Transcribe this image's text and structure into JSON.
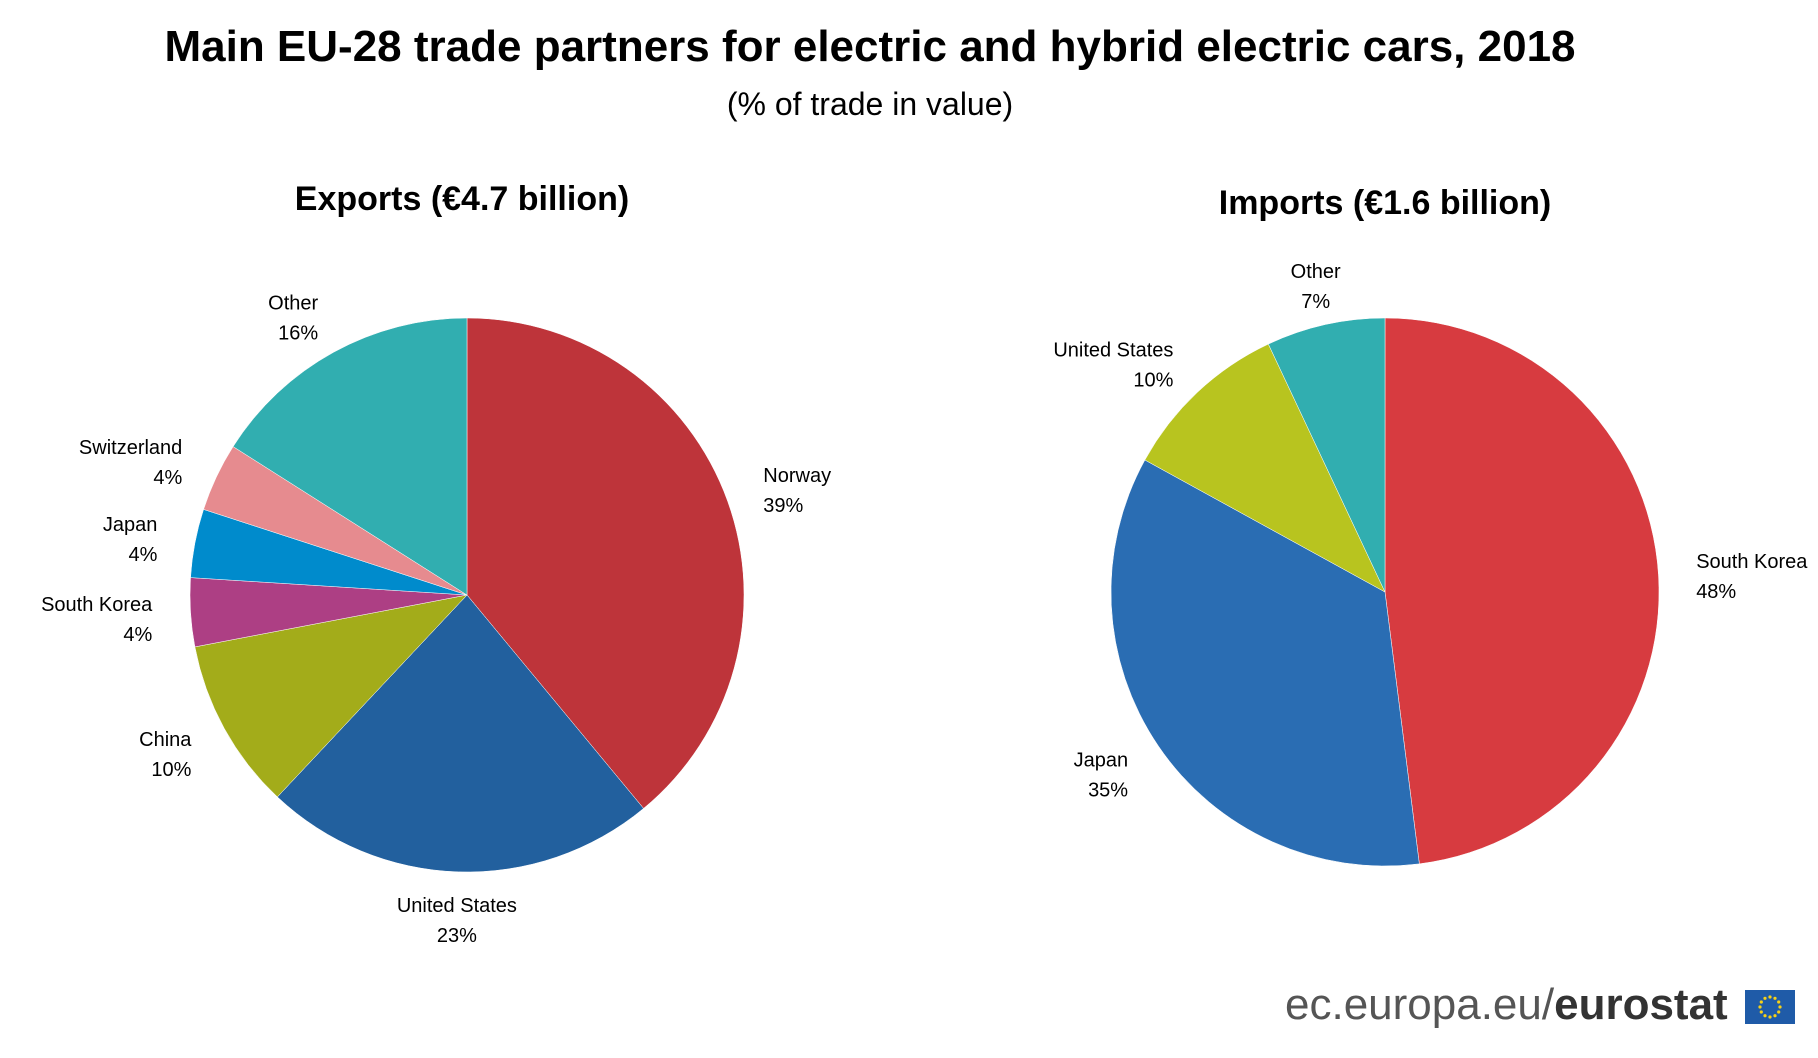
{
  "title": "Main EU-28 trade partners for electric and hybrid electric cars, 2018",
  "subtitle": "(% of trade in value)",
  "footer": {
    "domain": "ec.europa.eu/",
    "brand": "eurostat"
  },
  "chart_data": [
    {
      "type": "pie",
      "title": "Exports (€4.7 billion)",
      "slices": [
        {
          "label": "Norway",
          "value": 39,
          "value_label": "39%",
          "color": "#be343a"
        },
        {
          "label": "United States",
          "value": 23,
          "value_label": "23%",
          "color": "#22609e"
        },
        {
          "label": "China",
          "value": 10,
          "value_label": "10%",
          "color": "#a3ac1a"
        },
        {
          "label": "South Korea",
          "value": 4,
          "value_label": "4%",
          "color": "#ad3f84"
        },
        {
          "label": "Japan",
          "value": 4,
          "value_label": "4%",
          "color": "#008bcc"
        },
        {
          "label": "Switzerland",
          "value": 4,
          "value_label": "4%",
          "color": "#e68b8f"
        },
        {
          "label": "Other",
          "value": 16,
          "value_label": "16%",
          "color": "#31aeb0"
        }
      ]
    },
    {
      "type": "pie",
      "title": "Imports (€1.6 billion)",
      "slices": [
        {
          "label": "South Korea",
          "value": 48,
          "value_label": "48%",
          "color": "#d73b40"
        },
        {
          "label": "Japan",
          "value": 35,
          "value_label": "35%",
          "color": "#2a6db3"
        },
        {
          "label": "United States",
          "value": 10,
          "value_label": "10%",
          "color": "#b8c41f"
        },
        {
          "label": "Other",
          "value": 7,
          "value_label": "7%",
          "color": "#31aeb0"
        }
      ]
    }
  ]
}
